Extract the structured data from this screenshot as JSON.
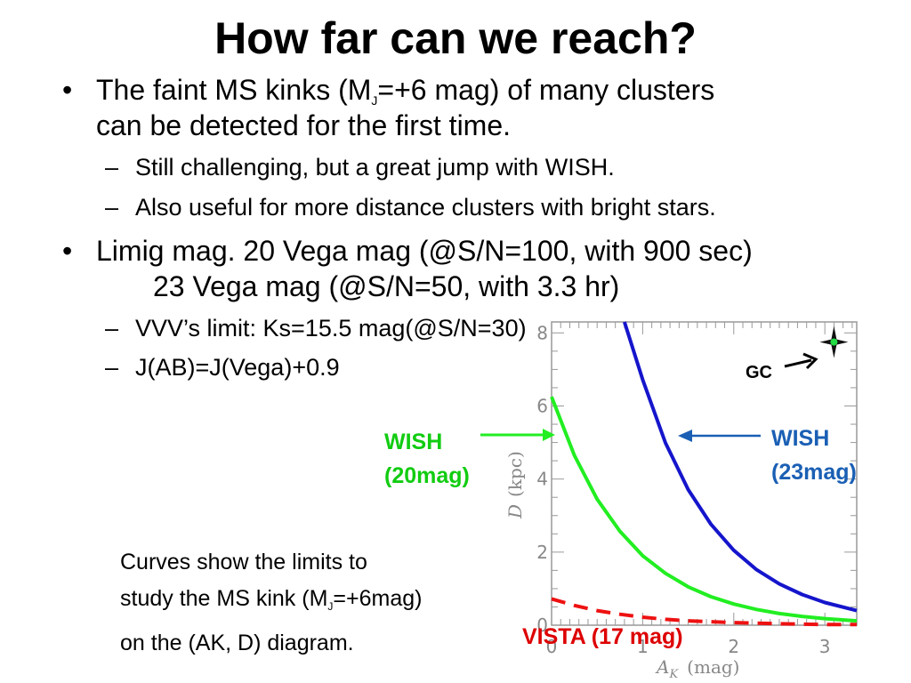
{
  "slide": {
    "title": "How far can we reach?",
    "bullet_char": "•",
    "dash_char": "–",
    "bullet1_pre": "The faint MS kinks (M",
    "bullet1_sub": "J",
    "bullet1_post": "=+6 mag) of many clusters",
    "bullet1_line2": "can be detected for the first time.",
    "sub1": "Still challenging, but a great jump with WISH.",
    "sub2": "Also useful for more distance clusters with bright stars.",
    "bullet2_line1": "Limig mag. 20 Vega mag (@S/N=100, with 900 sec)",
    "bullet2_line2": "23 Vega mag (@S/N=50, with 3.3 hr)",
    "sub3": "VVV’s limit: Ks=15.5 mag(@S/N=30)",
    "sub4": "J(AB)=J(Vega)+0.9",
    "caption_line1": "Curves show the limits to",
    "caption_line2_pre": "study the MS kink (M",
    "caption_line2_sub": "J",
    "caption_line2_post": "=+6mag)",
    "caption_line3": "on the (AK, D) diagram."
  },
  "annotations": {
    "wish20_line1": "WISH",
    "wish20_line2": "(20mag)",
    "wish23_line1": "WISH",
    "wish23_line2": "(23mag)",
    "vista": "VISTA (17 mag)",
    "gc": "GC"
  },
  "colors": {
    "wish20": "#22ee22",
    "wish23": "#1515cc",
    "vista": "#ee1111",
    "wish20_label": "#11cc11",
    "wish23_label": "#1a5fb4",
    "vista_label": "#dd0000"
  },
  "chart_data": {
    "type": "line",
    "xlabel_var": "A",
    "xlabel_sub": "K",
    "xlabel_unit": "(mag)",
    "ylabel_var": "D",
    "ylabel_unit": "(kpc)",
    "xlim": [
      0,
      3.35
    ],
    "ylim": [
      0,
      8.3
    ],
    "xticks": [
      0,
      1,
      2,
      3
    ],
    "yticks": [
      0,
      2,
      4,
      6,
      8
    ],
    "series": [
      {
        "key": "wish23",
        "style": "solid",
        "x": [
          0.8,
          1.0,
          1.25,
          1.5,
          1.75,
          2.0,
          2.25,
          2.5,
          2.75,
          3.0,
          3.35
        ],
        "y": [
          8.4,
          6.72,
          4.99,
          3.71,
          2.76,
          2.05,
          1.52,
          1.13,
          0.84,
          0.62,
          0.4
        ]
      },
      {
        "key": "wish20",
        "style": "solid",
        "x": [
          0.0,
          0.25,
          0.5,
          0.75,
          1.0,
          1.25,
          1.5,
          1.75,
          2.0,
          2.25,
          2.5,
          2.75,
          3.0,
          3.35
        ],
        "y": [
          6.25,
          4.65,
          3.45,
          2.57,
          1.9,
          1.42,
          1.05,
          0.78,
          0.58,
          0.43,
          0.32,
          0.24,
          0.18,
          0.12
        ]
      },
      {
        "key": "vista",
        "style": "dashed",
        "x": [
          0.0,
          0.25,
          0.5,
          0.75,
          1.0,
          1.25,
          1.5,
          2.0,
          2.5,
          3.0,
          3.35
        ],
        "y": [
          0.72,
          0.54,
          0.4,
          0.3,
          0.22,
          0.16,
          0.12,
          0.07,
          0.04,
          0.02,
          0.02
        ]
      }
    ],
    "markers": [
      {
        "label_key": "gc",
        "x": 3.1,
        "y": 7.75
      }
    ]
  }
}
